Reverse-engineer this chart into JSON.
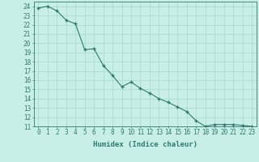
{
  "x_values": [
    0,
    1,
    2,
    3,
    4,
    5,
    6,
    7,
    8,
    9,
    10,
    11,
    12,
    13,
    14,
    15,
    16,
    17,
    18,
    19,
    20,
    21,
    22,
    23
  ],
  "y_values": [
    23.8,
    24.0,
    23.5,
    22.5,
    22.1,
    19.3,
    19.4,
    17.6,
    16.5,
    15.3,
    15.8,
    15.1,
    14.6,
    14.0,
    13.6,
    13.1,
    12.6,
    11.6,
    11.0,
    11.2,
    11.2,
    11.2,
    11.1,
    11.0
  ],
  "xlabel": "Humidex (Indice chaleur)",
  "xlim": [
    -0.5,
    23.5
  ],
  "ylim": [
    11,
    24.5
  ],
  "yticks": [
    11,
    12,
    13,
    14,
    15,
    16,
    17,
    18,
    19,
    20,
    21,
    22,
    23,
    24
  ],
  "xticks": [
    0,
    1,
    2,
    3,
    4,
    5,
    6,
    7,
    8,
    9,
    10,
    11,
    12,
    13,
    14,
    15,
    16,
    17,
    18,
    19,
    20,
    21,
    22,
    23
  ],
  "line_color": "#2d7c6e",
  "marker_color": "#2d7c6e",
  "bg_color": "#c8eee8",
  "grid_color": "#a8d8cc",
  "axis_color": "#2d7c6e",
  "text_color": "#2d7c6e",
  "font_size": 5.5,
  "xlabel_fontsize": 6.5,
  "marker": "+",
  "marker_size": 3.5,
  "line_width": 0.8
}
